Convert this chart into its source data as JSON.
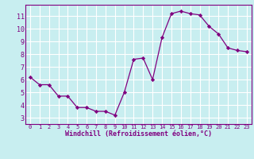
{
  "x": [
    0,
    1,
    2,
    3,
    4,
    5,
    6,
    7,
    8,
    9,
    10,
    11,
    12,
    13,
    14,
    15,
    16,
    17,
    18,
    19,
    20,
    21,
    22,
    23
  ],
  "y": [
    6.2,
    5.6,
    5.6,
    4.7,
    4.7,
    3.8,
    3.8,
    3.5,
    3.5,
    3.2,
    5.0,
    7.6,
    7.7,
    6.0,
    9.3,
    11.2,
    11.4,
    11.2,
    11.1,
    10.2,
    9.6,
    8.5,
    8.3,
    8.2
  ],
  "line_color": "#800080",
  "marker": "D",
  "marker_size": 2.2,
  "bg_color": "#c8eef0",
  "grid_color": "#ffffff",
  "xlabel": "Windchill (Refroidissement éolien,°C)",
  "xlabel_color": "#800080",
  "tick_color": "#800080",
  "ylabel_ticks": [
    3,
    4,
    5,
    6,
    7,
    8,
    9,
    10,
    11
  ],
  "xlim": [
    -0.5,
    23.5
  ],
  "ylim": [
    2.5,
    11.9
  ],
  "figsize": [
    3.2,
    2.0
  ],
  "dpi": 100
}
